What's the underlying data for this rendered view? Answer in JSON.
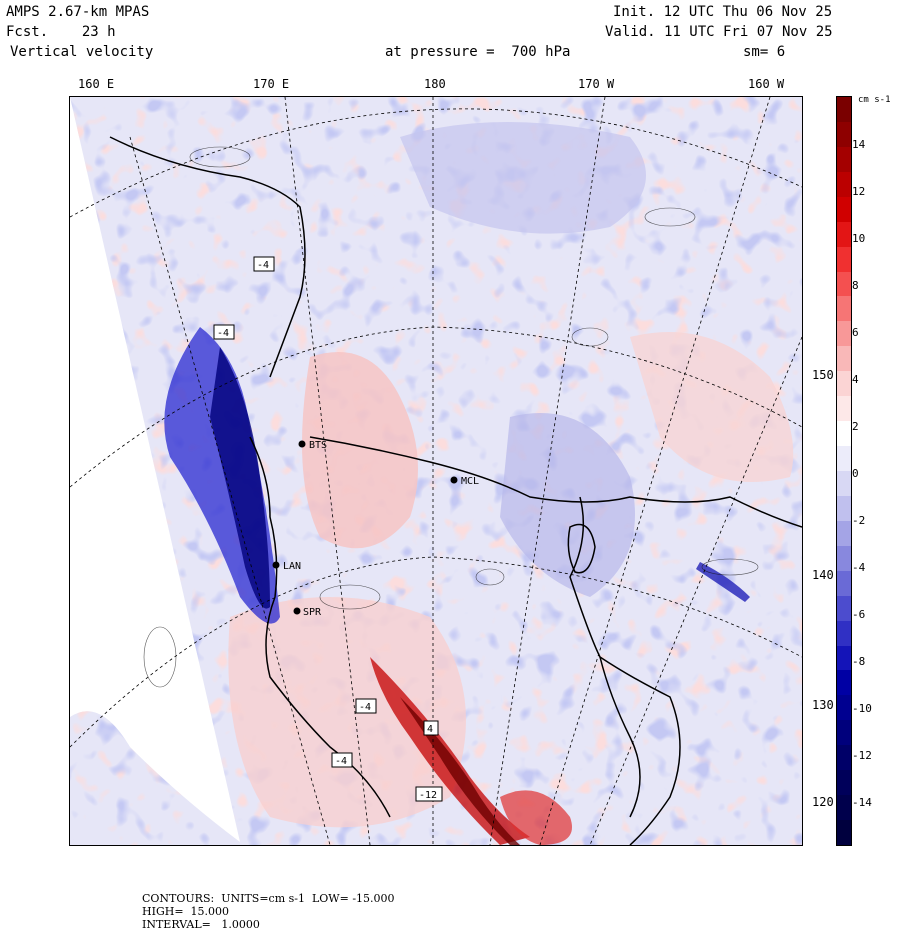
{
  "header": {
    "model": "AMPS 2.67-km MPAS",
    "forecast": "Fcst.    23 h",
    "field": "Vertical velocity",
    "init": "Init. 12 UTC Thu 06 Nov 25",
    "valid": "Valid. 11 UTC Fri 07 Nov 25",
    "pressure": "at pressure =  700 hPa",
    "smoothing": "sm= 6"
  },
  "longitude_labels": [
    "160 E",
    "170 E",
    "180",
    "170 W",
    "160 W"
  ],
  "latitude_labels": [
    "150 W",
    "140 W",
    "130 W",
    "120 W"
  ],
  "stations": [
    "BTS",
    "MCL",
    "LAN",
    "SPR"
  ],
  "contour_boxes": [
    "-4",
    "-4",
    "-4",
    "4",
    "-4",
    "-12"
  ],
  "colorbar": {
    "unit": "cm s-1",
    "ticks": [
      "14",
      "12",
      "10",
      "8",
      "6",
      "4",
      "2",
      "0",
      "-2",
      "-4",
      "-6",
      "-8",
      "-10",
      "-12",
      "-14"
    ],
    "colors": [
      "#7a0000",
      "#8e0000",
      "#a40000",
      "#bb0000",
      "#d00000",
      "#e31515",
      "#f03030",
      "#f45050",
      "#f67575",
      "#f89898",
      "#f9b8b8",
      "#fbd4d4",
      "#fde8e8",
      "#ffffff",
      "#ececfa",
      "#d8d8f4",
      "#c0c0ee",
      "#a4a4e6",
      "#8888de",
      "#6a6ad6",
      "#4c4cce",
      "#3030c4",
      "#1414b8",
      "#0000a4",
      "#000090",
      "#00007c",
      "#000068",
      "#00005a",
      "#00004c",
      "#00003e"
    ]
  },
  "footer": {
    "contours": "CONTOURS:  UNITS=cm s-1  LOW= -15.000",
    "high": "HIGH=  15.000",
    "interval": "INTERVAL=   1.0000"
  }
}
